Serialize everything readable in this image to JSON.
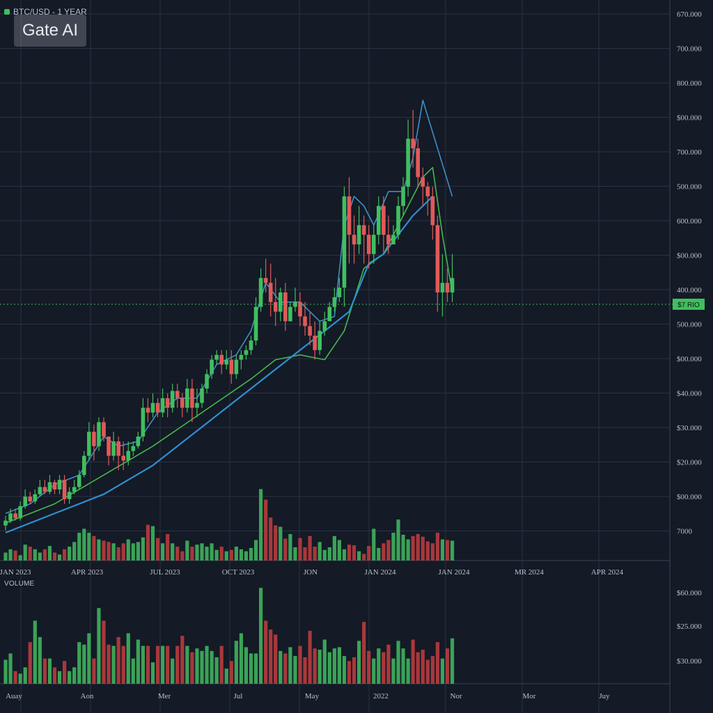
{
  "header": {
    "title": "BTC/USD - 1 YEAR",
    "watermark": "Gate AI"
  },
  "colors": {
    "background": "#141a26",
    "grid": "#2a3242",
    "up": "#3fbf5f",
    "down": "#e05a5a",
    "volume_up": "#3aa357",
    "volume_down": "#a8383c",
    "ma_fast": "#3e8fc4",
    "ma_slow": "#46b84e",
    "ma_long": "#2f8fd0",
    "price_line": "#3fbf5f",
    "axis_text": "#b9c0cc"
  },
  "chart_data": [
    {
      "type": "candlestick",
      "title": "BTC/USD - 1 YEAR",
      "price_axis_labels": [
        "670.000",
        "700.000",
        "800.000",
        "$00.000",
        "700.000",
        "500.000",
        "600.000",
        "$00.000",
        "400.000",
        "500.000",
        "$00.000",
        "$40.000",
        "$30.000",
        "$20.000",
        "$00.000",
        "7000"
      ],
      "x_tick_labels": [
        "JAN 2023",
        "APR 2023",
        "JUL 2023",
        "OCT 2023",
        "JON",
        "JAN 2024",
        "JAN 2024",
        "MR 2024",
        "APR 2024"
      ],
      "current_price_label": "$7 RIO",
      "current_price_level": 47.4,
      "y_range": [
        0,
        100
      ],
      "grid": true,
      "candles": [
        [
          1.5,
          2.5,
          3.5,
          0.5
        ],
        [
          2.5,
          4,
          5,
          2
        ],
        [
          4,
          3,
          5,
          2.5
        ],
        [
          3,
          5.5,
          6.5,
          2.5
        ],
        [
          5.5,
          7.5,
          9,
          5
        ],
        [
          7.5,
          6.5,
          8.5,
          6
        ],
        [
          6.5,
          8,
          9,
          6
        ],
        [
          8,
          9.5,
          11,
          7.5
        ],
        [
          9.5,
          8.5,
          11,
          8
        ],
        [
          8.5,
          10.5,
          12,
          8
        ],
        [
          10.5,
          9,
          11,
          8
        ],
        [
          9,
          11,
          12,
          8
        ],
        [
          11,
          7,
          12,
          6
        ],
        [
          7,
          8.5,
          9.5,
          6
        ],
        [
          8.5,
          9.5,
          11,
          8
        ],
        [
          9.5,
          12,
          13,
          9
        ],
        [
          12,
          16,
          17,
          11.5
        ],
        [
          16,
          21,
          23,
          15
        ],
        [
          21,
          18,
          22.5,
          15
        ],
        [
          18,
          23,
          24,
          17
        ],
        [
          23,
          20,
          24,
          19
        ],
        [
          20,
          16,
          20,
          14
        ],
        [
          16,
          19,
          21,
          15
        ],
        [
          19,
          16,
          20,
          13
        ],
        [
          16,
          15,
          19,
          13
        ],
        [
          15,
          17,
          19,
          14
        ],
        [
          17,
          18,
          19,
          16
        ],
        [
          18,
          20,
          21,
          17.5
        ],
        [
          20,
          26,
          28,
          19
        ],
        [
          26,
          25,
          28,
          23
        ],
        [
          25,
          27,
          29,
          24
        ],
        [
          27,
          25,
          28,
          24
        ],
        [
          25,
          28,
          30,
          24
        ],
        [
          28,
          26,
          29,
          24
        ],
        [
          26,
          29.5,
          31,
          25
        ],
        [
          29.5,
          28,
          31,
          26
        ],
        [
          28,
          26,
          29,
          24
        ],
        [
          26,
          30,
          32,
          25
        ],
        [
          30,
          26,
          32,
          23
        ],
        [
          26,
          27,
          30,
          24
        ],
        [
          27,
          30,
          31,
          26
        ],
        [
          30,
          33,
          34,
          29
        ],
        [
          33,
          36,
          37,
          32
        ],
        [
          36,
          37,
          38,
          35
        ],
        [
          37,
          35,
          38,
          33
        ],
        [
          35,
          36,
          38,
          34
        ],
        [
          36,
          33,
          38,
          31
        ],
        [
          33,
          36,
          37,
          32
        ],
        [
          36,
          37,
          38,
          34
        ],
        [
          37,
          38,
          39,
          36
        ],
        [
          38,
          40,
          41,
          37
        ],
        [
          40,
          47,
          49,
          39
        ],
        [
          47,
          53,
          55,
          46
        ],
        [
          53,
          52,
          57,
          50
        ],
        [
          52,
          48,
          56,
          45
        ],
        [
          48,
          46,
          53,
          43
        ],
        [
          46,
          50,
          51,
          44
        ],
        [
          50,
          44,
          52,
          42
        ],
        [
          44,
          47,
          48,
          44
        ],
        [
          47,
          48,
          51,
          46
        ],
        [
          48,
          45,
          50,
          43
        ],
        [
          45,
          43,
          48,
          41
        ],
        [
          43,
          41,
          46,
          39
        ],
        [
          41,
          38,
          44,
          36
        ],
        [
          38,
          42,
          44,
          37
        ],
        [
          42,
          44,
          46,
          41
        ],
        [
          44,
          47,
          48,
          44
        ],
        [
          47,
          49,
          51,
          46
        ],
        [
          49,
          51,
          53,
          48
        ],
        [
          51,
          70,
          72,
          47
        ],
        [
          70,
          62,
          74,
          56
        ],
        [
          62,
          60,
          66,
          56
        ],
        [
          60,
          64,
          68,
          58
        ],
        [
          64,
          62,
          66,
          56
        ],
        [
          62,
          58,
          64,
          55
        ],
        [
          58,
          62,
          64,
          56
        ],
        [
          62,
          68,
          70,
          60
        ],
        [
          68,
          62,
          70,
          58
        ],
        [
          62,
          60,
          66,
          58
        ],
        [
          60,
          62,
          64,
          60
        ],
        [
          62,
          68,
          70,
          61
        ],
        [
          68,
          72,
          74,
          66
        ],
        [
          72,
          82,
          86,
          70
        ],
        [
          82,
          80,
          88,
          76
        ],
        [
          80,
          74,
          82,
          72
        ],
        [
          74,
          72,
          76,
          68
        ],
        [
          72,
          70,
          73,
          66
        ],
        [
          70,
          64,
          72,
          61
        ],
        [
          64,
          50,
          66,
          46
        ],
        [
          50,
          52,
          58,
          45
        ],
        [
          52,
          50,
          55,
          48
        ],
        [
          50,
          53,
          58,
          48
        ]
      ],
      "series": [
        {
          "name": "",
          "color": "#3e8fc4",
          "values": [
            [
              0,
              4
            ],
            [
              5,
              6
            ],
            [
              10,
              10
            ],
            [
              15,
              12
            ],
            [
              20,
              20
            ],
            [
              23,
              18
            ],
            [
              27,
              19
            ],
            [
              31,
              25
            ],
            [
              35,
              28
            ],
            [
              39,
              28
            ],
            [
              43,
              35
            ],
            [
              47,
              37
            ],
            [
              50,
              42
            ],
            [
              53,
              52
            ],
            [
              56,
              48
            ],
            [
              60,
              48
            ],
            [
              64,
              44
            ],
            [
              67,
              45
            ],
            [
              69,
              64
            ],
            [
              71,
              70
            ],
            [
              73,
              68
            ],
            [
              75,
              64
            ],
            [
              78,
              71
            ],
            [
              81,
              71
            ],
            [
              83,
              78
            ],
            [
              85,
              90
            ],
            [
              88,
              80
            ],
            [
              91,
              70
            ]
          ]
        },
        {
          "name": "",
          "color": "#46b84e",
          "values": [
            [
              0,
              2
            ],
            [
              10,
              6
            ],
            [
              20,
              12
            ],
            [
              30,
              18
            ],
            [
              40,
              25
            ],
            [
              50,
              32
            ],
            [
              55,
              36
            ],
            [
              60,
              37
            ],
            [
              65,
              36
            ],
            [
              69,
              42
            ],
            [
              73,
              55
            ],
            [
              77,
              58
            ],
            [
              80,
              64
            ],
            [
              82,
              68
            ],
            [
              85,
              74
            ],
            [
              87,
              76
            ],
            [
              89,
              62
            ],
            [
              91,
              50
            ]
          ]
        },
        {
          "name": "",
          "color": "#2f8fd0",
          "values": [
            [
              0,
              0
            ],
            [
              10,
              4
            ],
            [
              20,
              8
            ],
            [
              30,
              14
            ],
            [
              40,
              22
            ],
            [
              50,
              30
            ],
            [
              60,
              38
            ],
            [
              65,
              42
            ],
            [
              70,
              46
            ],
            [
              74,
              56
            ],
            [
              77,
              58
            ],
            [
              80,
              62
            ],
            [
              83,
              66
            ],
            [
              87,
              70
            ]
          ]
        }
      ]
    },
    {
      "type": "bar",
      "title": "",
      "label": "VOLUME",
      "overlay_volume": [
        12,
        17,
        15,
        8,
        24,
        21,
        17,
        12,
        17,
        22,
        12,
        9,
        17,
        21,
        28,
        42,
        48,
        42,
        37,
        32,
        30,
        28,
        26,
        20,
        26,
        32,
        26,
        28,
        35,
        54,
        52,
        34,
        26,
        40,
        26,
        21,
        14,
        30,
        21,
        24,
        26,
        21,
        26,
        16,
        21,
        14,
        16,
        21,
        17,
        14,
        19,
        31,
        108,
        92,
        65,
        53,
        51,
        33,
        40,
        20,
        34,
        20,
        37,
        21,
        28,
        16,
        20,
        37,
        31,
        17,
        24,
        23,
        14,
        10,
        22,
        48,
        19,
        26,
        31,
        42,
        62,
        39,
        32,
        37,
        40,
        36,
        29,
        26,
        42,
        32,
        31,
        30
      ],
      "values": [
        19,
        24,
        10,
        8,
        13,
        33,
        50,
        37,
        20,
        20,
        13,
        10,
        18,
        10,
        13,
        33,
        31,
        40,
        20,
        60,
        50,
        31,
        30,
        37,
        30,
        40,
        20,
        35,
        30,
        30,
        17,
        30,
        30,
        30,
        20,
        30,
        38,
        30,
        25,
        28,
        26,
        30,
        26,
        21,
        30,
        12,
        18,
        34,
        40,
        29,
        24,
        24,
        76,
        50,
        43,
        39,
        26,
        24,
        29,
        22,
        30,
        21,
        42,
        28,
        27,
        35,
        25,
        28,
        29,
        22,
        18,
        21,
        34,
        49,
        26,
        20,
        28,
        25,
        31,
        20,
        34,
        28,
        20,
        35,
        25,
        27,
        19,
        22,
        33,
        20,
        28,
        36
      ],
      "volume_axis_labels": [
        "$60.000",
        "$25.000",
        "$30.000"
      ],
      "x_tick_labels": [
        "Auay",
        "Aon",
        "Mer",
        "Jul",
        "May",
        "2022",
        "Nor",
        "Mor",
        "Juy"
      ]
    }
  ]
}
